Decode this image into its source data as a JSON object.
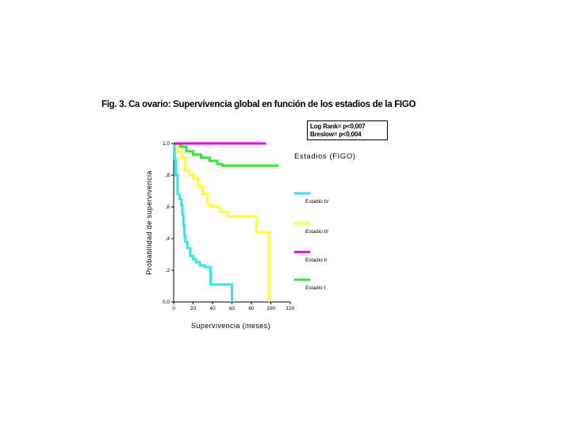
{
  "title": "Fig. 3. Ca ovario: Supervivencia global en función de los estadios de la FIGO",
  "stats": {
    "line1": "Log Rank= p<0,007",
    "line2": "Breslow= p<0,004"
  },
  "chart_data": {
    "type": "line",
    "subtype": "kaplan-meier step",
    "xlabel": "Supervivencia (meses)",
    "ylabel": "Probabilidad de supervivencia",
    "xlim": [
      0,
      120
    ],
    "ylim": [
      0,
      1
    ],
    "x_ticks": [
      0,
      20,
      40,
      60,
      80,
      100,
      120
    ],
    "x_tick_labels": [
      "0",
      "20",
      "40",
      "60",
      "80",
      "100",
      "120"
    ],
    "y_ticks": [
      0,
      0.2,
      0.4,
      0.6,
      0.8,
      1.0
    ],
    "y_tick_labels": [
      "0,0",
      ",2",
      ",4",
      ",6",
      ",8",
      "1,0"
    ],
    "grid": false,
    "legend_title": "Estadios (FIGO)",
    "legend_position": "right",
    "series": [
      {
        "name": "Estadio IV",
        "color": "#33e6e6",
        "points": [
          [
            0,
            1.0
          ],
          [
            1,
            0.9
          ],
          [
            2,
            0.8
          ],
          [
            4,
            0.68
          ],
          [
            6,
            0.65
          ],
          [
            8,
            0.61
          ],
          [
            9,
            0.55
          ],
          [
            10,
            0.48
          ],
          [
            11,
            0.42
          ],
          [
            12,
            0.38
          ],
          [
            14,
            0.34
          ],
          [
            17,
            0.29
          ],
          [
            20,
            0.27
          ],
          [
            23,
            0.25
          ],
          [
            27,
            0.23
          ],
          [
            32,
            0.22
          ],
          [
            38,
            0.11
          ],
          [
            58,
            0.11
          ],
          [
            60,
            0.0
          ]
        ]
      },
      {
        "name": "Estadio III",
        "color": "#ffff33",
        "points": [
          [
            0,
            1.0
          ],
          [
            4,
            0.95
          ],
          [
            8,
            0.91
          ],
          [
            12,
            0.83
          ],
          [
            16,
            0.8
          ],
          [
            20,
            0.78
          ],
          [
            25,
            0.73
          ],
          [
            30,
            0.68
          ],
          [
            35,
            0.61
          ],
          [
            40,
            0.6
          ],
          [
            47,
            0.57
          ],
          [
            55,
            0.54
          ],
          [
            68,
            0.54
          ],
          [
            83,
            0.54
          ],
          [
            85,
            0.44
          ],
          [
            97,
            0.44
          ],
          [
            98,
            0.0
          ]
        ]
      },
      {
        "name": "Estadio II",
        "color": "#e600e6",
        "points": [
          [
            0,
            1.0
          ],
          [
            95,
            1.0
          ]
        ]
      },
      {
        "name": "Estadio I",
        "color": "#33e633",
        "points": [
          [
            0,
            1.0
          ],
          [
            7,
            0.98
          ],
          [
            13,
            0.95
          ],
          [
            20,
            0.93
          ],
          [
            28,
            0.91
          ],
          [
            37,
            0.89
          ],
          [
            45,
            0.87
          ],
          [
            50,
            0.86
          ],
          [
            60,
            0.86
          ],
          [
            108,
            0.86
          ]
        ]
      }
    ],
    "legend_order": [
      "Estadio IV",
      "Estadio III",
      "Estadio II",
      "Estadio I"
    ]
  }
}
